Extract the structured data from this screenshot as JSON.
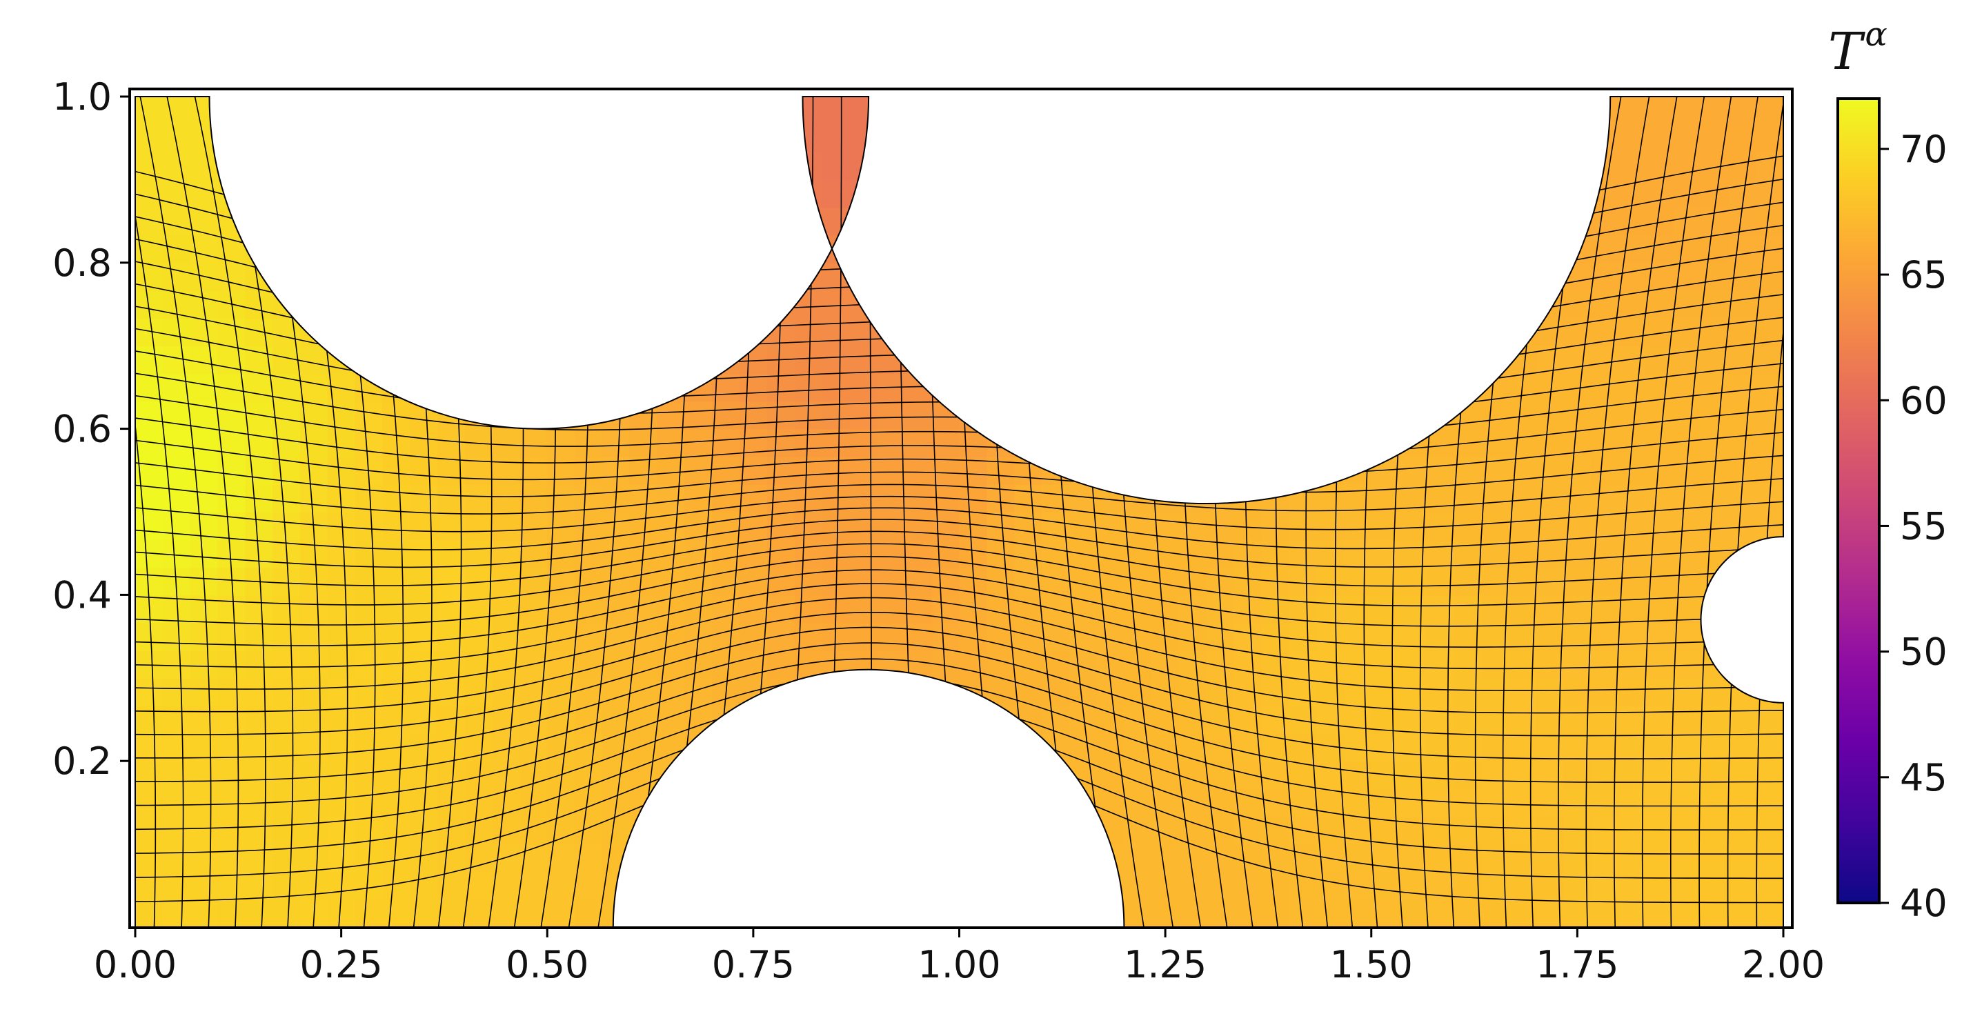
{
  "chart_data": {
    "type": "heatmap",
    "title": "",
    "xlabel": "",
    "ylabel": "",
    "xlim": [
      0.0,
      2.0
    ],
    "ylim": [
      0.0,
      1.0
    ],
    "x_ticks": [
      {
        "value": 0.0,
        "label": "0.00"
      },
      {
        "value": 0.25,
        "label": "0.25"
      },
      {
        "value": 0.5,
        "label": "0.50"
      },
      {
        "value": 0.75,
        "label": "0.75"
      },
      {
        "value": 1.0,
        "label": "1.00"
      },
      {
        "value": 1.25,
        "label": "1.25"
      },
      {
        "value": 1.5,
        "label": "1.50"
      },
      {
        "value": 1.75,
        "label": "1.75"
      },
      {
        "value": 2.0,
        "label": "2.00"
      }
    ],
    "y_ticks": [
      {
        "value": 0.2,
        "label": "0.2"
      },
      {
        "value": 0.4,
        "label": "0.4"
      },
      {
        "value": 0.6,
        "label": "0.6"
      },
      {
        "value": 0.8,
        "label": "0.8"
      },
      {
        "value": 1.0,
        "label": "1.0"
      }
    ],
    "colorbar": {
      "title_base": "T",
      "title_superscript": "α",
      "colormap": "plasma",
      "range": [
        40,
        72
      ],
      "ticks": [
        {
          "value": 40,
          "label": "40"
        },
        {
          "value": 45,
          "label": "45"
        },
        {
          "value": 50,
          "label": "50"
        },
        {
          "value": 55,
          "label": "55"
        },
        {
          "value": 60,
          "label": "60"
        },
        {
          "value": 65,
          "label": "65"
        },
        {
          "value": 70,
          "label": "70"
        }
      ]
    },
    "obstacles": [
      {
        "shape": "semicircle",
        "edge": "top",
        "center_x": 0.49,
        "radius": 0.4,
        "lowest_y": 0.6
      },
      {
        "shape": "semicircle",
        "edge": "bottom",
        "center_x": 0.89,
        "radius": 0.31,
        "highest_y": 0.39
      },
      {
        "shape": "semicircle",
        "edge": "top",
        "center_x": 1.3,
        "radius": 0.49,
        "lowest_y": 0.51
      },
      {
        "shape": "semicircle",
        "edge": "right",
        "center_y": 0.37,
        "radius": 0.1,
        "leftmost_x": 1.9
      }
    ],
    "temperature_samples": [
      {
        "x": 0.0,
        "y": 0.55,
        "value": 72
      },
      {
        "x": 0.1,
        "y": 0.95,
        "value": 70
      },
      {
        "x": 0.1,
        "y": 0.1,
        "value": 69
      },
      {
        "x": 0.35,
        "y": 0.4,
        "value": 69
      },
      {
        "x": 0.6,
        "y": 0.45,
        "value": 67
      },
      {
        "x": 0.87,
        "y": 0.95,
        "value": 61
      },
      {
        "x": 0.87,
        "y": 0.7,
        "value": 63
      },
      {
        "x": 0.9,
        "y": 0.5,
        "value": 65
      },
      {
        "x": 1.15,
        "y": 0.45,
        "value": 67
      },
      {
        "x": 1.2,
        "y": 0.05,
        "value": 67
      },
      {
        "x": 1.5,
        "y": 0.3,
        "value": 68
      },
      {
        "x": 1.75,
        "y": 0.95,
        "value": 66
      },
      {
        "x": 1.75,
        "y": 0.55,
        "value": 67
      },
      {
        "x": 1.95,
        "y": 0.1,
        "value": 68
      }
    ]
  }
}
